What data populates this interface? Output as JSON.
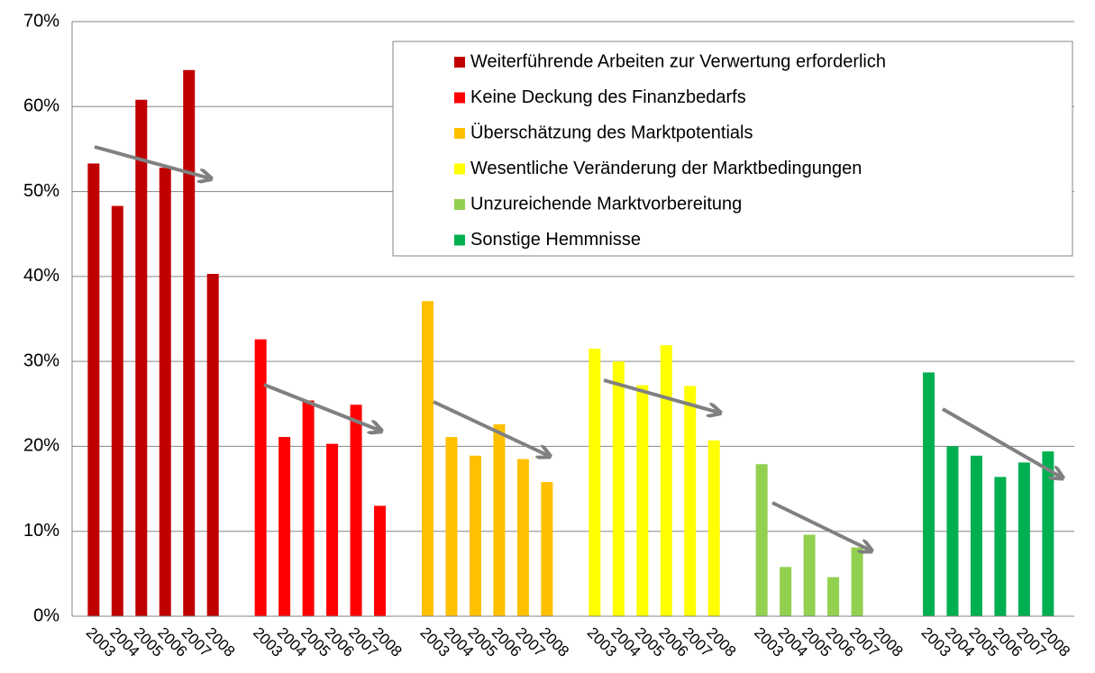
{
  "chart_data": {
    "type": "bar",
    "categories": [
      "2003",
      "2004",
      "2005",
      "2006",
      "2007",
      "2008"
    ],
    "series": [
      {
        "name": "Weiterführende Arbeiten zur Verwertung erforderlich",
        "color": "#c00000",
        "values": [
          53.3,
          48.3,
          60.8,
          52.8,
          64.3,
          40.3
        ]
      },
      {
        "name": "Keine Deckung des Finanzbedarfs",
        "color": "#ff0000",
        "values": [
          32.6,
          21.1,
          25.4,
          20.3,
          24.9,
          13.0
        ]
      },
      {
        "name": "Überschätzung des Marktpotentials",
        "color": "#ffc000",
        "values": [
          37.1,
          21.1,
          18.9,
          22.6,
          18.5,
          15.8
        ]
      },
      {
        "name": "Wesentliche Veränderung der Marktbedingungen",
        "color": "#ffff00",
        "values": [
          31.5,
          30.0,
          27.2,
          31.9,
          27.1,
          20.7
        ]
      },
      {
        "name": "Unzureichende Marktvorbereitung",
        "color": "#92d050",
        "values": [
          17.9,
          5.8,
          9.6,
          4.6,
          8.1,
          null
        ]
      },
      {
        "name": "Sonstige Hemmnisse",
        "color": "#00b050",
        "values": [
          28.7,
          20.0,
          18.9,
          16.4,
          18.1,
          19.4
        ]
      }
    ],
    "ylim": [
      0,
      70
    ],
    "yticks": [
      {
        "value": 0,
        "label": "0%"
      },
      {
        "value": 10,
        "label": "10%"
      },
      {
        "value": 20,
        "label": "20%"
      },
      {
        "value": 30,
        "label": "30%"
      },
      {
        "value": 40,
        "label": "40%"
      },
      {
        "value": 50,
        "label": "50%"
      },
      {
        "value": 60,
        "label": "60%"
      },
      {
        "value": 70,
        "label": "70%"
      }
    ],
    "grid": true,
    "legend": "upper right"
  }
}
